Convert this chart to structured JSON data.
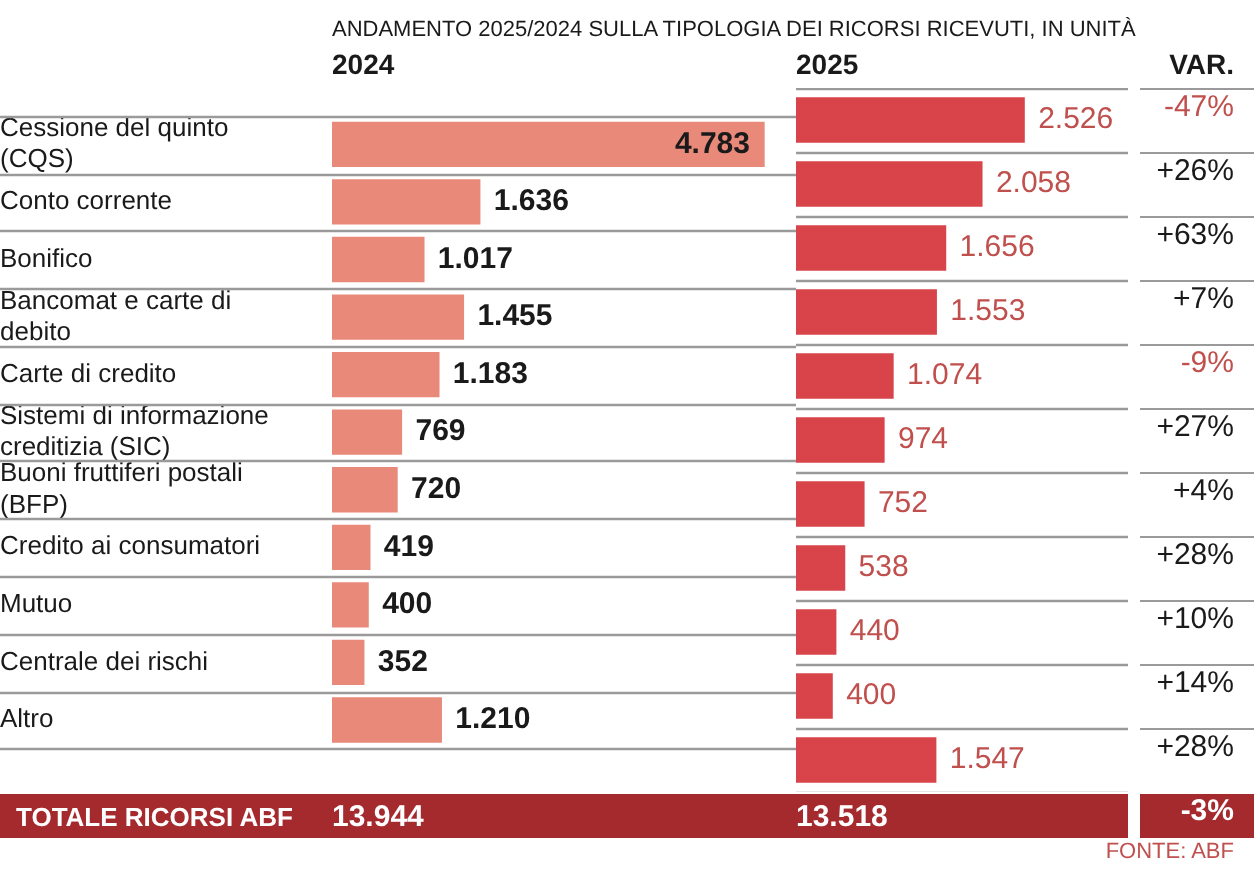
{
  "chart_data": [
    {
      "type": "bar",
      "orientation": "horizontal",
      "title": "ANDAMENTO 2025/2024 SULLA TIPOLOGIA DEI RICORSI RICEVUTI, IN UNITÀ",
      "categories": [
        "Cessione del quinto (CQS)",
        "Conto corrente",
        "Bonifico",
        "Bancomat e carte di debito",
        "Carte di credito",
        "Sistemi di informazione creditizia (SIC)",
        "Buoni fruttiferi postali (BFP)",
        "Credito ai consumatori",
        "Mutuo",
        "Centrale dei rischi",
        "Altro"
      ],
      "series": [
        {
          "name": "2024",
          "color": "#e8897a",
          "values": [
            4783,
            1636,
            1017,
            1455,
            1183,
            769,
            720,
            419,
            400,
            352,
            1210
          ],
          "value_labels": [
            "4.783",
            "1.636",
            "1.017",
            "1.455",
            "1.183",
            "769",
            "720",
            "419",
            "400",
            "352",
            "1.210"
          ]
        }
      ],
      "grid": "y",
      "tick_labels": "y",
      "annotations": [
        "TOTALE RICORSI ABF",
        "13.944"
      ]
    },
    {
      "type": "bar",
      "orientation": "horizontal",
      "series": [
        {
          "name": "2025",
          "color": "#d9434a",
          "values": [
            2526,
            2058,
            1656,
            1553,
            1074,
            974,
            752,
            538,
            440,
            400,
            1547
          ],
          "value_labels": [
            "2.526",
            "2.058",
            "1.656",
            "1.553",
            "1.074",
            "974",
            "752",
            "538",
            "440",
            "400",
            "1.547"
          ]
        }
      ],
      "grid": "y",
      "tick_labels": false,
      "annotations": [
        "13.518",
        "FONTE: ABF"
      ]
    },
    {
      "type": "other",
      "title": "VAR.",
      "annotations": [
        "-47%",
        "+26%",
        "+63%",
        "+7%",
        "-9%",
        "+27%",
        "+4%",
        "+28%",
        "+10%",
        "+14%",
        "+28%",
        "-3%"
      ]
    }
  ]
}
